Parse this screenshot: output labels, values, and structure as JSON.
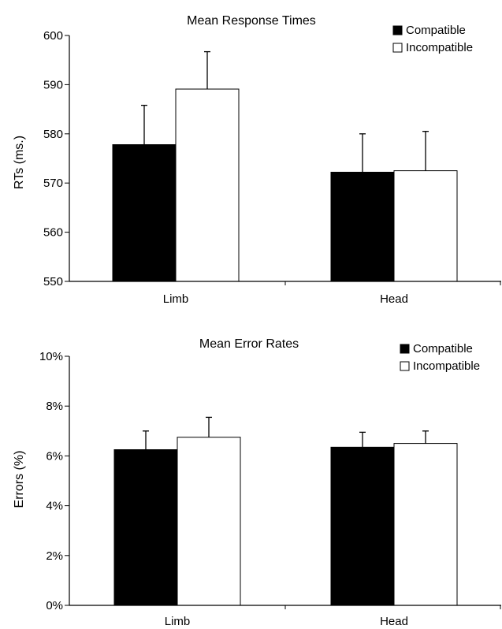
{
  "chart_data": [
    {
      "type": "bar",
      "title": "Mean Response Times",
      "xlabel": "",
      "ylabel": "RTs (ms.)",
      "categories": [
        "Limb",
        "Head"
      ],
      "ylim": [
        550,
        600
      ],
      "yticks": [
        550,
        560,
        570,
        580,
        590,
        600
      ],
      "ytick_labels": [
        "550",
        "560",
        "570",
        "580",
        "590",
        "600"
      ],
      "grid": false,
      "legend_position": "top-right",
      "series": [
        {
          "name": "Compatible",
          "color": "#000000",
          "values": [
            577.8,
            572.2
          ],
          "error": [
            8.0,
            7.8
          ]
        },
        {
          "name": "Incompatible",
          "color": "#ffffff",
          "values": [
            589.1,
            572.5
          ],
          "error": [
            7.6,
            8.0
          ]
        }
      ]
    },
    {
      "type": "bar",
      "title": "Mean Error Rates",
      "xlabel": "",
      "ylabel": "Errors (%)",
      "categories": [
        "Limb",
        "Head"
      ],
      "ylim": [
        0,
        10
      ],
      "yticks": [
        0,
        2,
        4,
        6,
        8,
        10
      ],
      "ytick_labels": [
        "0%",
        "2%",
        "4%",
        "6%",
        "8%",
        "10%"
      ],
      "grid": false,
      "legend_position": "top-right",
      "series": [
        {
          "name": "Compatible",
          "color": "#000000",
          "values": [
            6.25,
            6.35
          ],
          "error": [
            0.75,
            0.6
          ]
        },
        {
          "name": "Incompatible",
          "color": "#ffffff",
          "values": [
            6.75,
            6.5
          ],
          "error": [
            0.8,
            0.5
          ]
        }
      ]
    }
  ]
}
